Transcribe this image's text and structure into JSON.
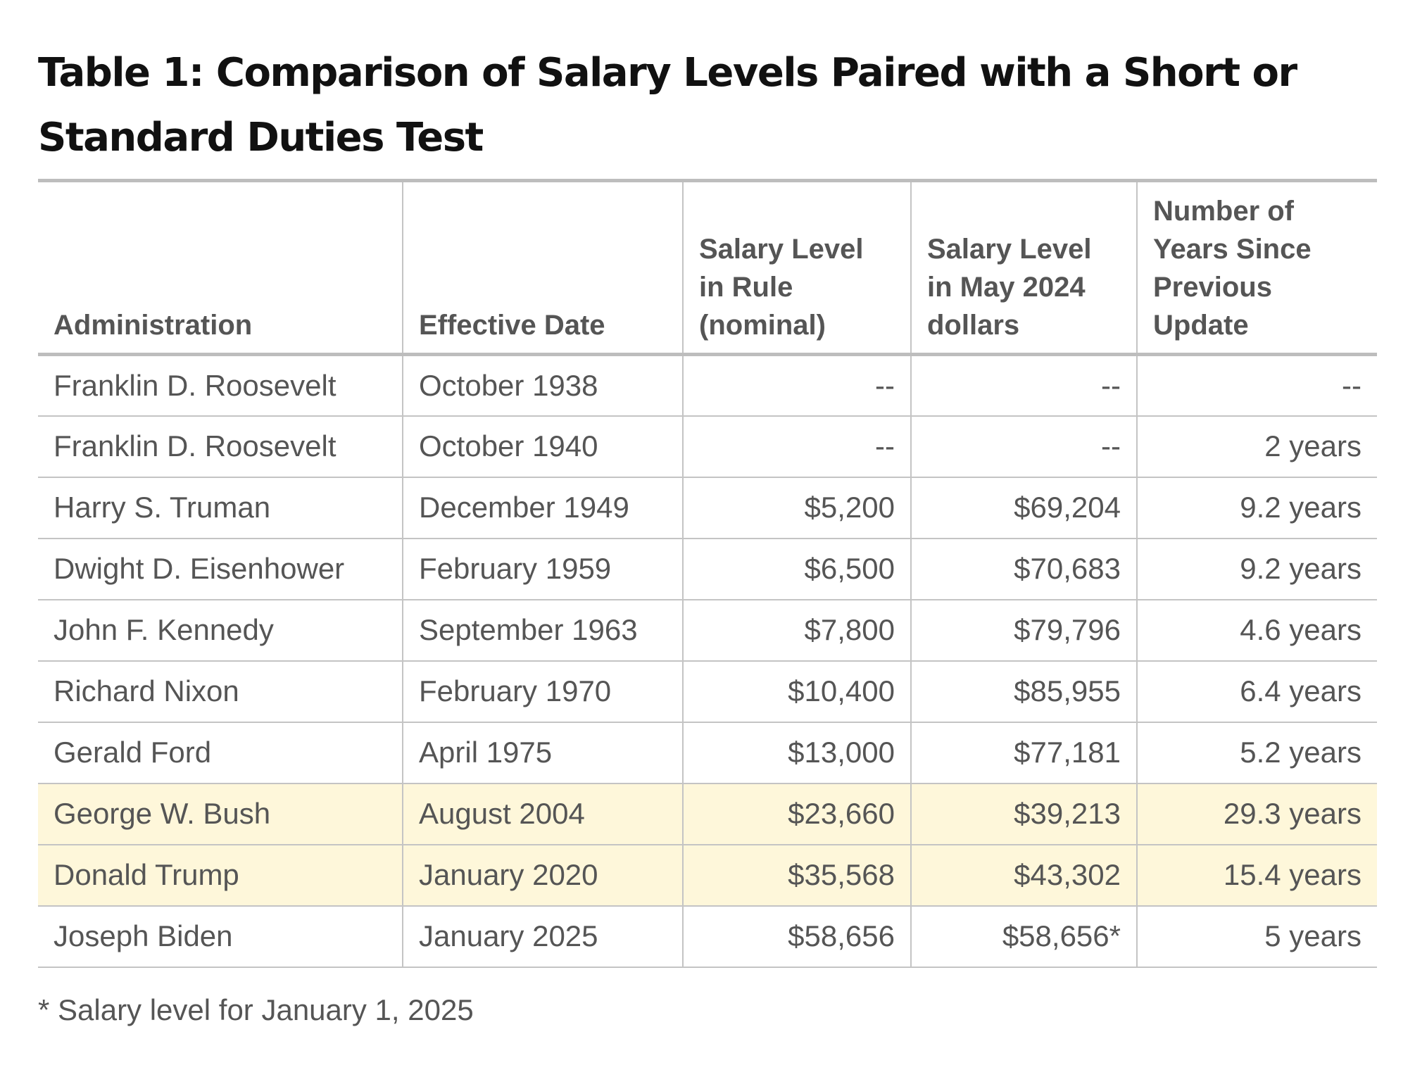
{
  "title": "Table 1: Comparison of Salary Levels Paired with a Short or Standard Duties Test",
  "table": {
    "headers": [
      "Administration",
      "Effective Date",
      "Salary Level in Rule (nominal)",
      "Salary Level in May 2024 dollars",
      "Number of Years Since Previous Update"
    ],
    "rows": [
      {
        "admin": "Franklin D. Roosevelt",
        "date": "October 1938",
        "nominal": "--",
        "real": "--",
        "years": "--",
        "highlight": false
      },
      {
        "admin": "Franklin D. Roosevelt",
        "date": "October 1940",
        "nominal": "--",
        "real": "--",
        "years": "2 years",
        "highlight": false
      },
      {
        "admin": "Harry S. Truman",
        "date": "December 1949",
        "nominal": "$5,200",
        "real": "$69,204",
        "years": "9.2 years",
        "highlight": false
      },
      {
        "admin": "Dwight D. Eisenhower",
        "date": "February 1959",
        "nominal": "$6,500",
        "real": "$70,683",
        "years": "9.2 years",
        "highlight": false
      },
      {
        "admin": "John F. Kennedy",
        "date": "September 1963",
        "nominal": "$7,800",
        "real": "$79,796",
        "years": "4.6 years",
        "highlight": false
      },
      {
        "admin": "Richard Nixon",
        "date": "February 1970",
        "nominal": "$10,400",
        "real": "$85,955",
        "years": "6.4 years",
        "highlight": false
      },
      {
        "admin": "Gerald Ford",
        "date": "April 1975",
        "nominal": "$13,000",
        "real": "$77,181",
        "years": "5.2 years",
        "highlight": false
      },
      {
        "admin": "George W. Bush",
        "date": "August 2004",
        "nominal": "$23,660",
        "real": "$39,213",
        "years": "29.3 years",
        "highlight": true
      },
      {
        "admin": "Donald Trump",
        "date": "January 2020",
        "nominal": "$35,568",
        "real": "$43,302",
        "years": "15.4 years",
        "highlight": true
      },
      {
        "admin": "Joseph Biden",
        "date": "January 2025",
        "nominal": "$58,656",
        "real": "$58,656*",
        "years": "5 years",
        "highlight": false
      }
    ]
  },
  "footnote": "* Salary level for January 1, 2025",
  "colors": {
    "highlight_row": "#fef7da",
    "rule": "#bdbdbd",
    "text": "#555555",
    "title": "#111111"
  }
}
